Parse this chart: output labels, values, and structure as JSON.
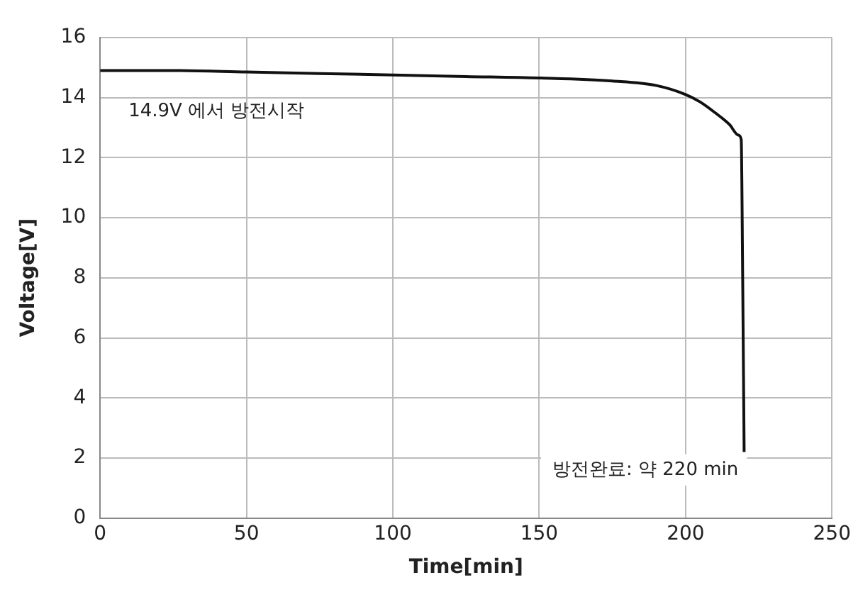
{
  "chart_data": {
    "type": "line",
    "xlabel": "Time[min]",
    "ylabel": "Voltage[V]",
    "x": [
      0,
      25,
      50,
      75,
      100,
      125,
      150,
      175,
      190,
      200,
      205,
      210,
      215,
      218,
      219,
      219.5,
      220
    ],
    "series": [
      {
        "color": "#111111",
        "values": [
          14.9,
          14.9,
          14.85,
          14.8,
          14.75,
          14.7,
          14.65,
          14.55,
          14.4,
          14.1,
          13.85,
          13.5,
          13.1,
          12.75,
          12.6,
          8,
          2.2
        ]
      }
    ],
    "xlim": [
      0,
      250
    ],
    "xticks": [
      0,
      50,
      100,
      150,
      200,
      250
    ],
    "ylim": [
      0,
      16
    ],
    "yticks": [
      0,
      2,
      4,
      6,
      8,
      10,
      12,
      14,
      16
    ],
    "grid": true,
    "legend": false,
    "marker": "none",
    "line_style": "solid",
    "annotations": [
      "14.9V 에서 방전시작",
      "방전완료: 약 220 min"
    ]
  }
}
